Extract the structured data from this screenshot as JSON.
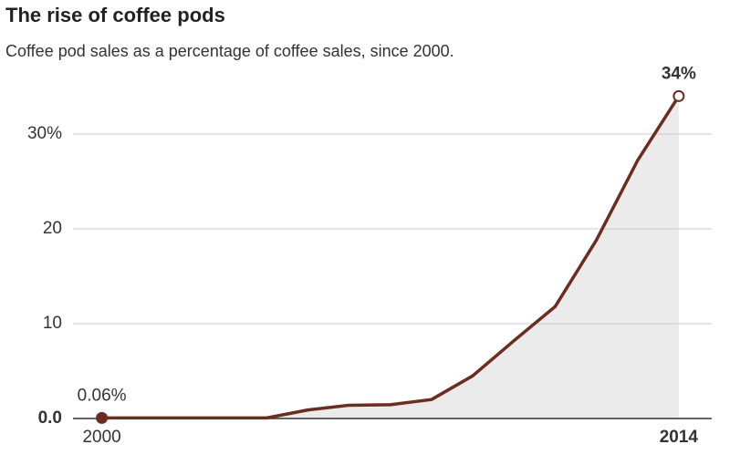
{
  "chart_data": {
    "type": "line",
    "title": "The rise of coffee pods",
    "subtitle": "Coffee pod sales as a percentage of coffee sales, since 2000.",
    "x": [
      2000,
      2001,
      2002,
      2003,
      2004,
      2005,
      2006,
      2007,
      2008,
      2009,
      2010,
      2011,
      2012,
      2013,
      2014
    ],
    "values": [
      0.06,
      0.06,
      0.06,
      0.06,
      0.06,
      0.9,
      1.4,
      1.45,
      2.0,
      4.5,
      8.2,
      11.8,
      18.8,
      27.2,
      34
    ],
    "value_labels": [
      "0.06%",
      null,
      null,
      null,
      null,
      null,
      null,
      null,
      null,
      null,
      null,
      null,
      null,
      null,
      "34%"
    ],
    "color": "#6b2d1f",
    "area_color": "#ebebeb",
    "xlim": [
      1999.3,
      2014.8
    ],
    "xticks": [
      2000,
      2014
    ],
    "ylim": [
      0,
      35
    ],
    "yticks": [
      {
        "value": 0,
        "label": "0.0"
      },
      10,
      20,
      {
        "value": 30,
        "label": "30%"
      }
    ],
    "grid": true
  }
}
